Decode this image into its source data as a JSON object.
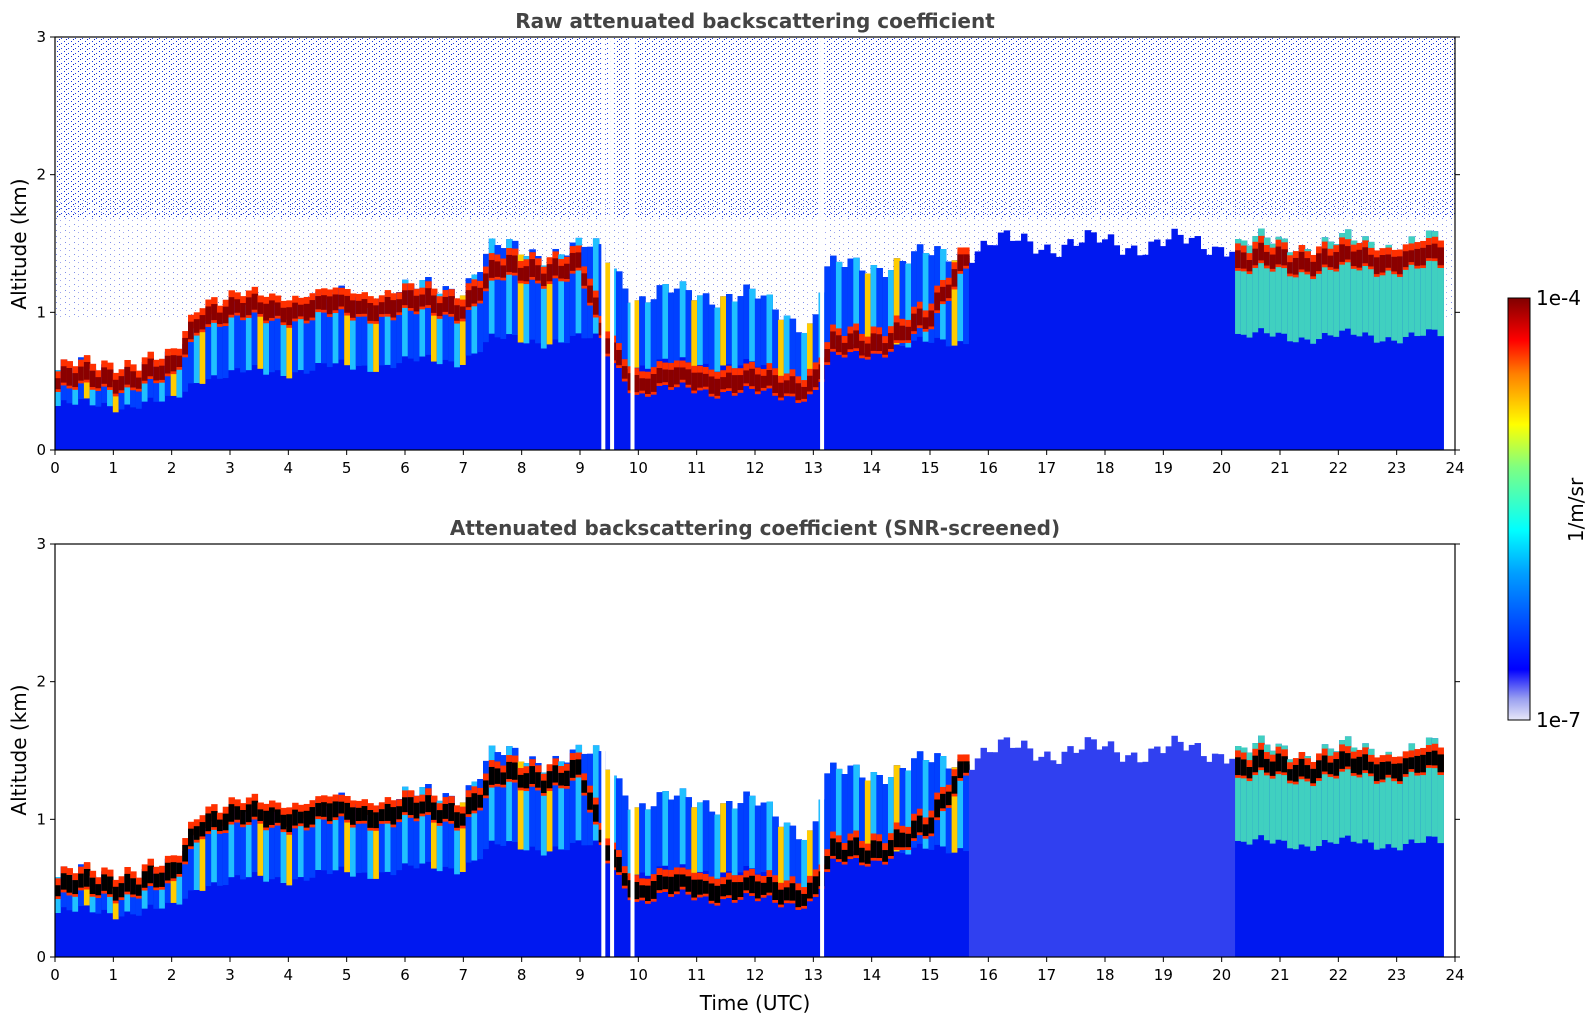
{
  "chart_data": [
    {
      "type": "heatmap",
      "title": "Raw attenuated backscattering coefficient",
      "xlabel": "",
      "ylabel": "Altitude (km)",
      "xlim": [
        0,
        24
      ],
      "ylim": [
        0,
        3
      ],
      "xticks": [
        "0",
        "1",
        "2",
        "3",
        "4",
        "5",
        "6",
        "7",
        "8",
        "9",
        "10",
        "11",
        "12",
        "13",
        "14",
        "15",
        "16",
        "17",
        "18",
        "19",
        "20",
        "21",
        "22",
        "23",
        "24"
      ],
      "yticks": [
        "0",
        "1",
        "2",
        "3"
      ],
      "screened": false,
      "layer_top_km": [
        [
          0,
          0.58
        ],
        [
          1,
          0.6
        ],
        [
          2,
          0.62
        ],
        [
          2.5,
          0.98
        ],
        [
          3,
          1.0
        ],
        [
          4,
          1.05
        ],
        [
          5,
          1.1
        ],
        [
          6,
          1.15
        ],
        [
          7,
          1.2
        ],
        [
          7.5,
          1.45
        ],
        [
          8,
          1.45
        ],
        [
          9,
          1.45
        ],
        [
          9.4,
          1.45
        ],
        [
          10,
          1.1
        ],
        [
          11,
          1.15
        ],
        [
          12,
          1.1
        ],
        [
          13,
          0.9
        ],
        [
          13.2,
          1.3
        ],
        [
          14,
          1.35
        ],
        [
          15,
          1.4
        ],
        [
          15.6,
          1.45
        ],
        [
          16,
          1.5
        ],
        [
          24,
          1.5
        ]
      ],
      "cloud_base_km": [
        [
          0,
          0.42
        ],
        [
          2,
          0.48
        ],
        [
          2.5,
          0.92
        ],
        [
          4,
          0.95
        ],
        [
          6,
          0.98
        ],
        [
          7,
          0.98
        ],
        [
          7.6,
          1.22
        ],
        [
          9,
          1.25
        ],
        [
          9.4,
          0.75
        ],
        [
          10,
          0.4
        ],
        [
          11,
          0.45
        ],
        [
          12,
          0.4
        ],
        [
          13,
          0.4
        ],
        [
          13.3,
          0.65
        ],
        [
          14,
          0.7
        ],
        [
          15,
          0.85
        ],
        [
          15.6,
          1.35
        ],
        [
          20.2,
          1.28
        ],
        [
          21,
          1.3
        ],
        [
          22,
          1.3
        ],
        [
          23.8,
          1.32
        ]
      ],
      "gaps_utc": [
        9.4,
        9.55,
        9.9,
        13.15
      ]
    },
    {
      "type": "heatmap",
      "title": "Attenuated backscattering coefficient (SNR-screened)",
      "xlabel": "Time (UTC)",
      "ylabel": "Altitude (km)",
      "xlim": [
        0,
        24
      ],
      "ylim": [
        0,
        3
      ],
      "xticks": [
        "0",
        "1",
        "2",
        "3",
        "4",
        "5",
        "6",
        "7",
        "8",
        "9",
        "10",
        "11",
        "12",
        "13",
        "14",
        "15",
        "16",
        "17",
        "18",
        "19",
        "20",
        "21",
        "22",
        "23",
        "24"
      ],
      "yticks": [
        "0",
        "1",
        "2",
        "3"
      ],
      "screened": true
    }
  ],
  "colorbar": {
    "label": "1/m/sr",
    "max_label": "1e-4",
    "min_label": "1e-7",
    "scale": "log",
    "colormap": "jet",
    "min_color": "#e8e8f8",
    "max_color": "#800000"
  }
}
